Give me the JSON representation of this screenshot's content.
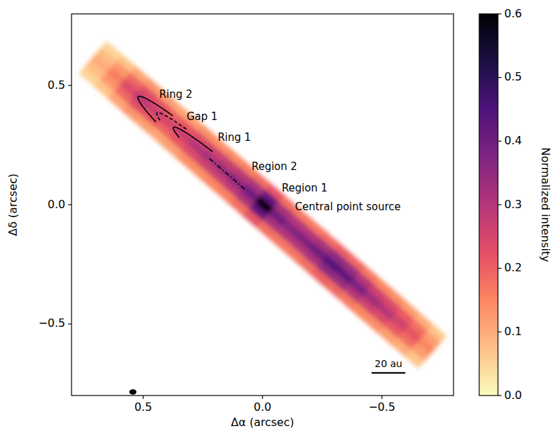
{
  "chart_data": {
    "type": "image",
    "x_label": "Δα (arcsec)",
    "y_label": "Δδ (arcsec)",
    "xlim": [
      0.8,
      -0.8
    ],
    "ylim": [
      -0.8,
      0.8
    ],
    "xticks": [
      {
        "value": 0.5,
        "label": "0.5"
      },
      {
        "value": 0,
        "label": "0.0"
      },
      {
        "value": -0.5,
        "label": "−0.5"
      }
    ],
    "yticks": [
      {
        "value": -0.5,
        "label": "−0.5"
      },
      {
        "value": 0,
        "label": "0.0"
      },
      {
        "value": 0.5,
        "label": "0.5"
      }
    ],
    "disk": {
      "position_angle": 49,
      "inclination": 85.5,
      "major_offsets": [
        -0.9,
        -0.825,
        -0.75,
        -0.675,
        -0.6,
        -0.525,
        -0.45,
        -0.375,
        -0.3,
        -0.225,
        -0.15,
        -0.075,
        0,
        0.075,
        0.15,
        0.225,
        0.3,
        0.375,
        0.45,
        0.525,
        0.6,
        0.675,
        0.75,
        0.825,
        0.9
      ],
      "minor_offsets": [
        -0.07,
        -0.035,
        0,
        0.035,
        0.07
      ],
      "cells": [
        [
          0.07,
          0.1,
          0.12,
          0.14,
          0.15,
          0.17,
          0.19,
          0.2,
          0.18,
          0.17,
          0.17,
          0.18,
          0.22,
          0.18,
          0.16,
          0.15,
          0.14,
          0.14,
          0.12,
          0.11,
          0.12,
          0.13,
          0.11,
          0.07,
          0.05
        ],
        [
          0.12,
          0.18,
          0.21,
          0.24,
          0.26,
          0.3,
          0.34,
          0.35,
          0.32,
          0.3,
          0.3,
          0.32,
          0.42,
          0.32,
          0.29,
          0.27,
          0.26,
          0.24,
          0.22,
          0.2,
          0.22,
          0.23,
          0.19,
          0.13,
          0.08
        ],
        [
          0.15,
          0.22,
          0.26,
          0.3,
          0.33,
          0.38,
          0.42,
          0.44,
          0.4,
          0.38,
          0.37,
          0.4,
          0.6,
          0.4,
          0.36,
          0.34,
          0.32,
          0.3,
          0.27,
          0.25,
          0.27,
          0.29,
          0.24,
          0.16,
          0.1
        ],
        [
          0.12,
          0.18,
          0.21,
          0.24,
          0.26,
          0.3,
          0.34,
          0.35,
          0.32,
          0.3,
          0.3,
          0.32,
          0.42,
          0.32,
          0.29,
          0.27,
          0.26,
          0.24,
          0.22,
          0.2,
          0.22,
          0.23,
          0.19,
          0.13,
          0.08
        ],
        [
          0.07,
          0.1,
          0.12,
          0.14,
          0.15,
          0.17,
          0.19,
          0.2,
          0.18,
          0.17,
          0.17,
          0.18,
          0.22,
          0.18,
          0.16,
          0.15,
          0.14,
          0.14,
          0.12,
          0.11,
          0.12,
          0.13,
          0.11,
          0.07,
          0.05
        ]
      ]
    },
    "colorbar": {
      "label": "Normalized intensity",
      "range": [
        0,
        0.6
      ],
      "ticks": [
        {
          "value": 0,
          "label": "0.0"
        },
        0.1,
        0.2,
        0.3,
        0.4,
        0.5,
        0.6
      ]
    },
    "contours": [
      {
        "radius": 0.69,
        "arc": [
          -40,
          35
        ],
        "line_style": "solid"
      },
      {
        "radius": 0.586,
        "arc": [
          -40,
          20
        ],
        "line_style": "dashed"
      },
      {
        "radius": 0.494,
        "arc": [
          -52,
          25
        ],
        "line_style": "solid"
      },
      {
        "segment": [
          0.1,
          0.3
        ],
        "line_style": "dashdot"
      }
    ],
    "annotations": [
      {
        "text": "Ring 2",
        "x": 0.433,
        "y": 0.462
      },
      {
        "text": "Gap 1",
        "x": 0.318,
        "y": 0.368
      },
      {
        "text": "Ring 1",
        "x": 0.188,
        "y": 0.281
      },
      {
        "text": "Region 2",
        "x": 0.046,
        "y": 0.16
      },
      {
        "text": "Region 1",
        "x": -0.081,
        "y": 0.067
      },
      {
        "text": "Central point source",
        "x": -0.136,
        "y": -0.009
      }
    ],
    "beam": {
      "x": 0.543,
      "y": -0.785,
      "major": 0.03,
      "minor": 0.023
    },
    "scale_bar": {
      "label": "20 au",
      "x": [
        -0.457,
        -0.598
      ],
      "y": -0.705
    }
  }
}
